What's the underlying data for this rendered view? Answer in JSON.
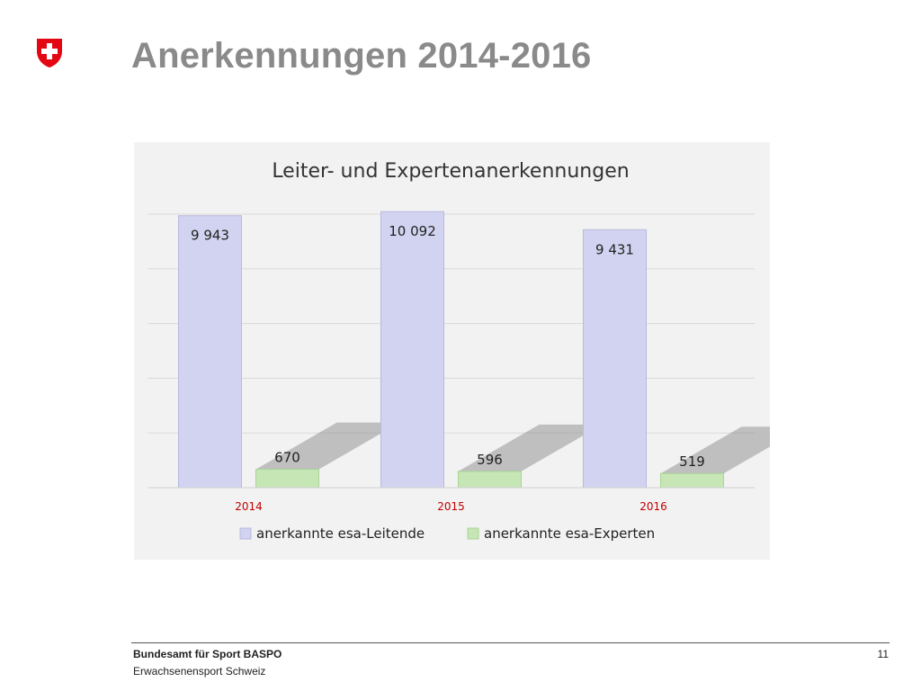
{
  "slide": {
    "title": "Anerkennungen 2014-2016"
  },
  "footer": {
    "org": "Bundesamt für Sport BASPO",
    "sub": "Erwachsenensport Schweiz",
    "page": "11"
  },
  "colors": {
    "title": "#8a8a8a",
    "category_label": "#c00000",
    "leitende": "#d2d3f0",
    "experten": "#c6e6b6",
    "swiss_red": "#e30613"
  },
  "chart_data": {
    "type": "bar",
    "title": "Leiter- und Expertenanerkennungen",
    "categories": [
      "2014",
      "2015",
      "2016"
    ],
    "series": [
      {
        "name": "anerkannte esa-Leitende",
        "values": [
          9943,
          10092,
          9431
        ],
        "labels": [
          "9 943",
          "10 092",
          "9 431"
        ]
      },
      {
        "name": "anerkannte esa-Experten",
        "values": [
          670,
          596,
          519
        ],
        "labels": [
          "670",
          "596",
          "519"
        ]
      }
    ],
    "ylim": [
      0,
      10000
    ],
    "grid": true,
    "legend_position": "bottom"
  }
}
